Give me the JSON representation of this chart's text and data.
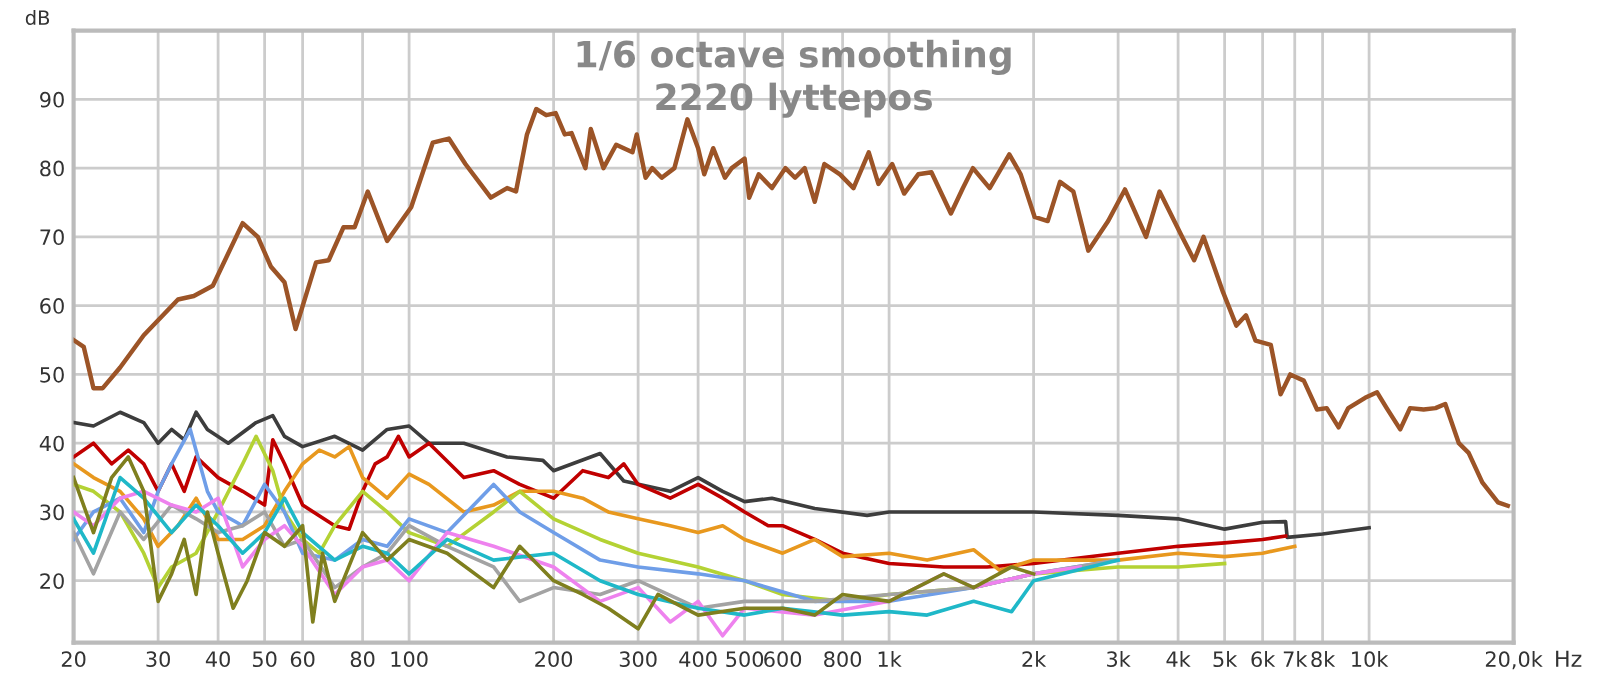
{
  "chart_data": {
    "type": "line",
    "title": "1/6 octave smoothing",
    "subtitle": "2220 lyttepos",
    "xlabel": "Hz",
    "ylabel": "dB",
    "log": "x",
    "grid": true,
    "xlim": [
      20,
      20000
    ],
    "ylim": [
      11,
      100
    ],
    "xticks": [
      20,
      30,
      40,
      50,
      60,
      80,
      100,
      200,
      300,
      400,
      500,
      600,
      800,
      {
        "value": 1000,
        "label": "1k"
      },
      {
        "value": 2000,
        "label": "2k"
      },
      {
        "value": 3000,
        "label": "3k"
      },
      {
        "value": 4000,
        "label": "4k"
      },
      {
        "value": 5000,
        "label": "5k"
      },
      {
        "value": 6000,
        "label": "6k"
      },
      {
        "value": 7000,
        "label": "7k"
      },
      {
        "value": 8000,
        "label": "8k"
      },
      {
        "value": 10000,
        "label": "10k"
      },
      {
        "value": 20000,
        "label": "20,0k"
      }
    ],
    "yticks": [
      20,
      30,
      40,
      50,
      60,
      70,
      80,
      90
    ],
    "series": [
      {
        "color": "#9c5427",
        "x": [
          20,
          21,
          22,
          23,
          25,
          28,
          33,
          35.6,
          39,
          45,
          48.4,
          51.5,
          55,
          58,
          64,
          68,
          73,
          77,
          82,
          90,
          101,
          112,
          121,
          131,
          148,
          160,
          167,
          176,
          184,
          193,
          202,
          211,
          218,
          233,
          239,
          254,
          270,
          292,
          298,
          311,
          321,
          336,
          357,
          380,
          400,
          412,
          430,
          455,
          470,
          500,
          511,
          535,
          570,
          608,
          637,
          667,
          700,
          733,
          790,
          843,
          907,
          950,
          1015,
          1075,
          1150,
          1225,
          1345,
          1425,
          1495,
          1620,
          1780,
          1880,
          2010,
          2140,
          2270,
          2420,
          2600,
          2860,
          3100,
          3250,
          3430,
          3660,
          4080,
          4320,
          4520,
          4960,
          5290,
          5540,
          5800,
          6240,
          6540,
          6850,
          7310,
          7790,
          8160,
          8640,
          9050,
          9810,
          10390,
          10880,
          11610,
          12170,
          12990,
          13750,
          14410,
          15380,
          16120,
          17210,
          18560,
          19450
        ],
        "values": [
          55,
          54,
          48,
          48,
          51,
          55.7,
          60.9,
          61.4,
          62.9,
          72,
          70,
          65.7,
          63.4,
          56.6,
          66.3,
          66.6,
          71.4,
          71.4,
          76.6,
          69.4,
          74.3,
          83.7,
          84.3,
          80.6,
          75.7,
          77.1,
          76.6,
          84.9,
          88.6,
          87.7,
          88,
          84.9,
          85.1,
          80,
          85.7,
          80,
          83.4,
          82.3,
          84.9,
          78.6,
          80,
          78.6,
          80,
          87.1,
          82.9,
          79.1,
          82.9,
          78.6,
          80,
          81.4,
          75.7,
          79.1,
          77.1,
          80,
          78.6,
          80,
          75.1,
          80.6,
          79.1,
          77.1,
          82.3,
          77.7,
          80.6,
          76.3,
          79.1,
          79.4,
          73.4,
          77.1,
          80,
          77.1,
          82,
          79.1,
          72.9,
          72.3,
          78,
          76.6,
          68,
          72.3,
          76.9,
          73.7,
          70,
          76.6,
          70,
          66.6,
          70,
          62,
          57.1,
          58.6,
          54.9,
          54.3,
          47.1,
          50,
          49.1,
          44.9,
          45.1,
          42.3,
          45.1,
          46.6,
          47.4,
          45.1,
          42,
          45.1,
          44.9,
          45.1,
          45.7,
          40,
          38.6,
          34.3,
          31.4,
          30.9
        ]
      },
      {
        "color": "#3d3d3d",
        "x": [
          20,
          22,
          25,
          28,
          30,
          32,
          34,
          36,
          38,
          42,
          48,
          52,
          55,
          60,
          70,
          80,
          90,
          100,
          110,
          130,
          160,
          190,
          200,
          250,
          280,
          350,
          400,
          450,
          500,
          570,
          700,
          900,
          1000,
          1500,
          2000,
          3000,
          4000,
          5000,
          6000,
          6700,
          6750,
          8000,
          10000
        ],
        "values": [
          43,
          42.5,
          44.5,
          43,
          40,
          42,
          40.5,
          44.5,
          42,
          40,
          43,
          44,
          41,
          39.5,
          41,
          39,
          42,
          42.5,
          40,
          40,
          38,
          37.5,
          36,
          38.5,
          34.5,
          33,
          35,
          33,
          31.5,
          32,
          30.5,
          29.5,
          30,
          30,
          30,
          29.5,
          29,
          27.5,
          28.5,
          28.6,
          26.3,
          26.8,
          27.7
        ]
      },
      {
        "color": "#c00000",
        "x": [
          20,
          22,
          24,
          26,
          28,
          30,
          32,
          34,
          36,
          40,
          45,
          50,
          52,
          55,
          60,
          70,
          75,
          80,
          85,
          90,
          95,
          100,
          110,
          130,
          150,
          170,
          200,
          230,
          260,
          280,
          300,
          350,
          400,
          450,
          500,
          560,
          600,
          700,
          800,
          1000,
          1300,
          1600,
          2000,
          3000,
          4000,
          5000,
          6000,
          6700
        ],
        "values": [
          38,
          40,
          37,
          39,
          37,
          33,
          37,
          33,
          38,
          35,
          33,
          31,
          40.5,
          37,
          31,
          28,
          27.5,
          33,
          37,
          38,
          41,
          38,
          40,
          35,
          36,
          34,
          32,
          36,
          35,
          37,
          34,
          32,
          34,
          32,
          30,
          28,
          28,
          26,
          24,
          22.5,
          22,
          22,
          22.5,
          24,
          25,
          25.5,
          26,
          26.5
        ]
      },
      {
        "color": "#e8981e",
        "x": [
          20,
          22,
          25,
          28,
          30,
          33,
          36,
          40,
          45,
          50,
          55,
          60,
          65,
          70,
          75,
          80,
          90,
          100,
          110,
          130,
          150,
          170,
          200,
          230,
          260,
          300,
          350,
          400,
          450,
          500,
          600,
          700,
          800,
          1000,
          1200,
          1500,
          1700,
          2000,
          3000,
          4000,
          5000,
          6000,
          7000
        ],
        "values": [
          37,
          35,
          33,
          29,
          25,
          28,
          32,
          26,
          26,
          28,
          33,
          37,
          39,
          38,
          39.5,
          35,
          32,
          35.5,
          34,
          30,
          31,
          33,
          33,
          32,
          30,
          29,
          28,
          27,
          28,
          26,
          24,
          26,
          23.5,
          24,
          23,
          24.5,
          21.5,
          23,
          23,
          24,
          23.5,
          24,
          25
        ]
      },
      {
        "color": "#b4d234",
        "x": [
          20,
          22,
          25,
          28,
          30,
          32,
          36,
          40,
          45,
          48,
          52,
          55,
          60,
          65,
          70,
          80,
          90,
          100,
          120,
          150,
          170,
          200,
          250,
          300,
          400,
          500,
          600,
          800,
          1000,
          1500,
          2000,
          3000,
          4000,
          5000
        ],
        "values": [
          34,
          33,
          30,
          24,
          19,
          22,
          24,
          30,
          37,
          41,
          36,
          30,
          26,
          24,
          28,
          33,
          30,
          27,
          25,
          30,
          33,
          29,
          26,
          24,
          22,
          20,
          18,
          17,
          18,
          19,
          21,
          22,
          22,
          22.5
        ]
      },
      {
        "color": "#6f9ee8",
        "x": [
          20,
          22,
          25,
          28,
          30,
          32,
          35,
          38,
          40,
          45,
          50,
          55,
          60,
          70,
          80,
          90,
          100,
          120,
          150,
          170,
          200,
          250,
          300,
          400,
          500,
          700,
          1000,
          1500,
          2000,
          3000
        ],
        "values": [
          26,
          30,
          32,
          27,
          33,
          37,
          42,
          33,
          30,
          28,
          34,
          30,
          24,
          23,
          26,
          25,
          29,
          27,
          34,
          30,
          27,
          23,
          22,
          21,
          20,
          17,
          17,
          19,
          21,
          23
        ]
      },
      {
        "color": "#a3a3a3",
        "x": [
          20,
          22,
          25,
          28,
          32,
          36,
          40,
          45,
          50,
          55,
          60,
          70,
          80,
          90,
          100,
          120,
          150,
          170,
          200,
          250,
          300,
          400,
          500,
          700,
          1000,
          1500,
          2000,
          3000
        ],
        "values": [
          27,
          21,
          30,
          26,
          31,
          29,
          27,
          28,
          30,
          25,
          26,
          19,
          22,
          24,
          28,
          25,
          22,
          17,
          19,
          18,
          20,
          16,
          17,
          17,
          18,
          19,
          21,
          23
        ]
      },
      {
        "color": "#ee82ee",
        "x": [
          20,
          22,
          25,
          28,
          32,
          36,
          40,
          45,
          50,
          55,
          60,
          70,
          80,
          90,
          100,
          120,
          150,
          200,
          250,
          300,
          350,
          400,
          450,
          500,
          700,
          1000,
          1300,
          1500,
          2000,
          2500
        ],
        "values": [
          30,
          28,
          32,
          33,
          31,
          30,
          32,
          22,
          26,
          28,
          25,
          18,
          22,
          23,
          20,
          27,
          25,
          22,
          17,
          19,
          14,
          17,
          12,
          16,
          15,
          17,
          21,
          19,
          21,
          22
        ]
      },
      {
        "color": "#1fb8c8",
        "x": [
          20,
          22,
          25,
          28,
          32,
          36,
          40,
          45,
          50,
          55,
          60,
          70,
          80,
          90,
          100,
          120,
          150,
          200,
          250,
          300,
          400,
          500,
          600,
          800,
          1000,
          1200,
          1500,
          1800,
          2000,
          3000
        ],
        "values": [
          29,
          24,
          35,
          32,
          27,
          31,
          28,
          24,
          27,
          32,
          27,
          23,
          25,
          24,
          21,
          26,
          23,
          24,
          20,
          18,
          16,
          15,
          16,
          15,
          15.5,
          15,
          17,
          15.5,
          20,
          23
        ]
      },
      {
        "color": "#7f7f1e",
        "x": [
          20,
          22,
          24,
          26,
          28,
          30,
          32,
          34,
          36,
          38,
          40,
          43,
          46,
          50,
          55,
          60,
          63,
          66,
          70,
          80,
          90,
          100,
          120,
          150,
          170,
          200,
          230,
          260,
          300,
          330,
          400,
          500,
          600,
          700,
          800,
          1000,
          1300,
          1500,
          1800,
          2000
        ],
        "values": [
          35,
          27,
          35,
          38,
          33,
          17,
          21,
          26,
          18,
          30,
          24,
          16,
          20,
          27,
          25,
          28,
          14,
          24,
          17,
          27,
          23,
          26,
          24,
          19,
          25,
          20,
          18,
          16,
          13,
          18,
          15,
          16,
          16,
          15,
          18,
          17,
          21,
          19,
          22,
          21
        ]
      }
    ]
  }
}
